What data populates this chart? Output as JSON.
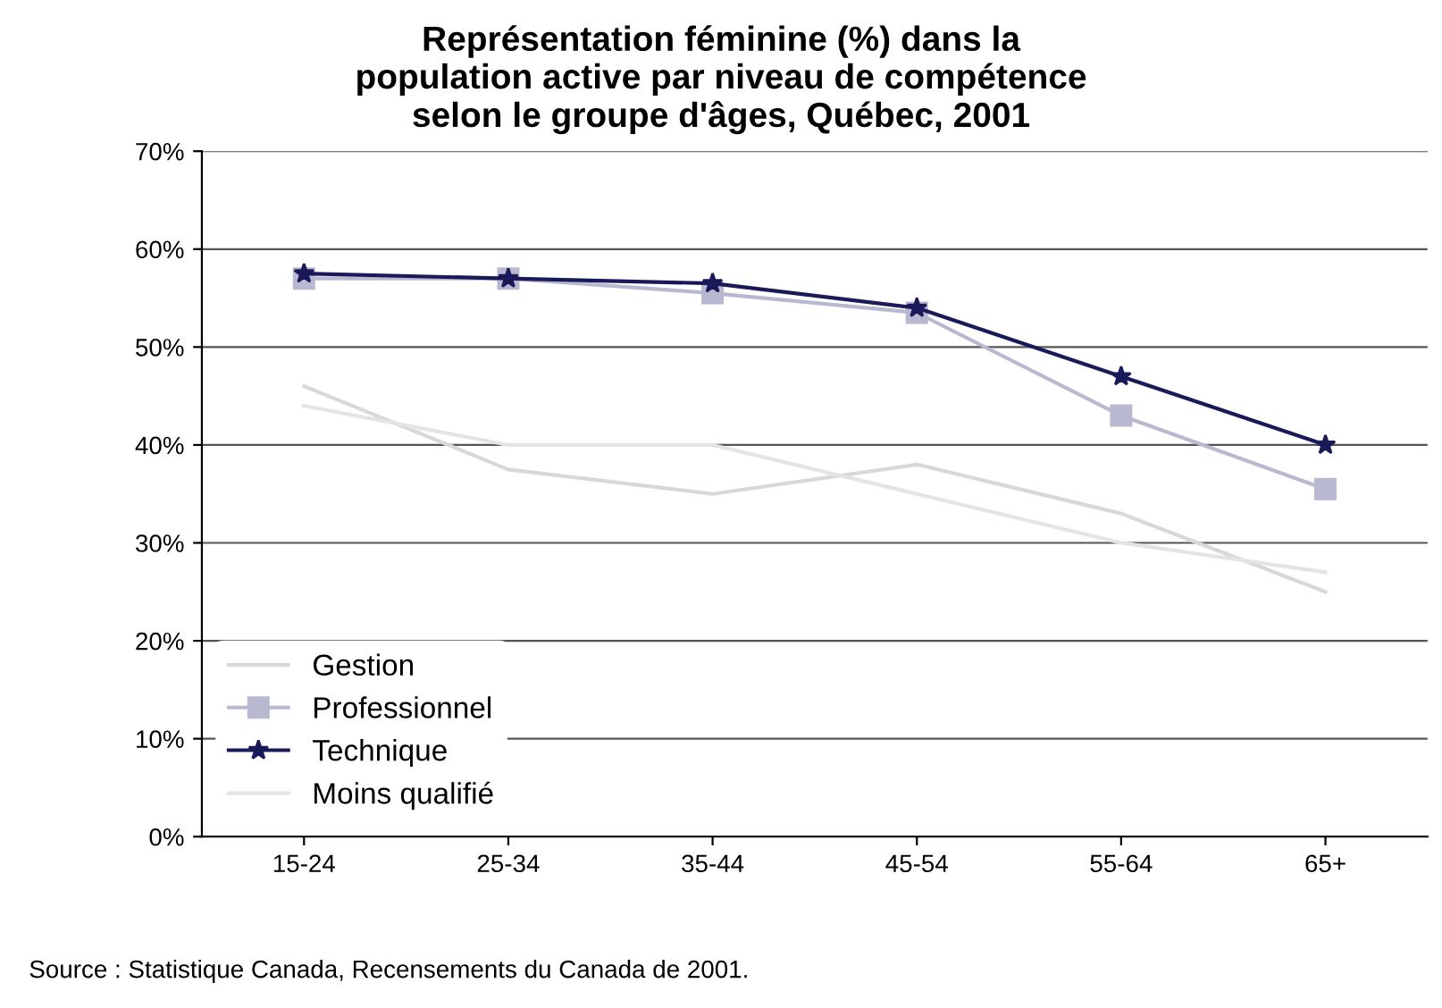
{
  "chart_data": {
    "type": "line",
    "title": "Représentation féminine (%) dans la\npopulation active par niveau de compétence\nselon le groupe d'âges, Québec, 2001",
    "categories": [
      "15-24",
      "25-34",
      "35-44",
      "45-54",
      "55-64",
      "65+"
    ],
    "series": [
      {
        "name": "Gestion",
        "color": "#d8d8d8",
        "values": [
          46,
          37.5,
          35,
          38,
          33,
          25
        ],
        "marker": "none"
      },
      {
        "name": "Professionnel",
        "color": "#b8b8d0",
        "values": [
          57,
          57,
          55.5,
          53.5,
          43,
          35.5
        ],
        "marker": "square"
      },
      {
        "name": "Technique",
        "color": "#1a1a5a",
        "values": [
          57.5,
          57,
          56.5,
          54,
          47,
          40
        ],
        "marker": "star"
      },
      {
        "name": "Moins qualifié",
        "color": "#e4e4e4",
        "values": [
          44,
          40,
          40,
          35,
          30,
          27
        ],
        "marker": "none"
      }
    ],
    "ylim": [
      0,
      70
    ],
    "yticks": [
      {
        "value": 0,
        "label": "0%"
      },
      {
        "value": 10,
        "label": "10%"
      },
      {
        "value": 20,
        "label": "20%"
      },
      {
        "value": 30,
        "label": "30%"
      },
      {
        "value": 40,
        "label": "40%"
      },
      {
        "value": 50,
        "label": "50%"
      },
      {
        "value": 60,
        "label": "60%"
      },
      {
        "value": 70,
        "label": "70%"
      }
    ],
    "grid": "y",
    "legend": "bottom left",
    "line_style": "solid",
    "annotations": [
      "Source : Statistique Canada, Recensements du Canada de 2001."
    ]
  }
}
